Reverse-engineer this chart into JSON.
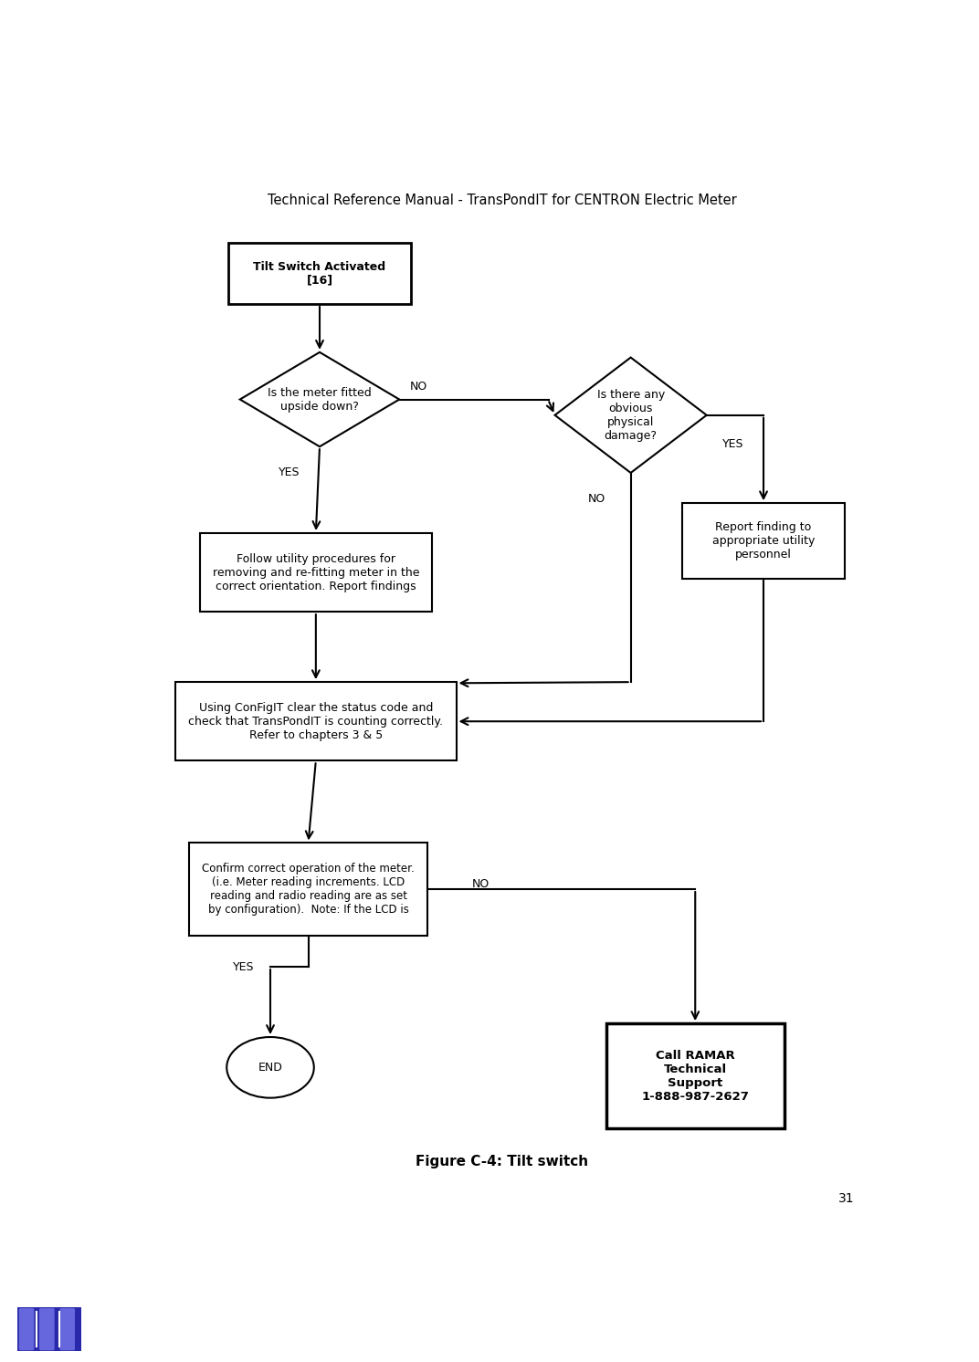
{
  "title": "Technical Reference Manual - TransPondIT for CENTRON Electric Meter",
  "figure_caption": "Figure C-4: Tilt switch",
  "page_number": "31",
  "background_color": "#ffffff",
  "font_size_title": 10.5,
  "font_size_node": 9,
  "font_size_caption": 11
}
